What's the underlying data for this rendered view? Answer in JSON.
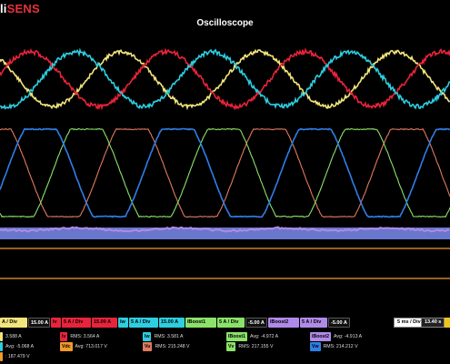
{
  "app": {
    "logo_a": "li",
    "logo_b": "SENS",
    "title": "Oscilloscope"
  },
  "colors": {
    "bg": "#000000",
    "red": "#e8243a",
    "yellow": "#f2e57c",
    "cyan": "#2ecde0",
    "blue": "#2f7fe6",
    "salmon": "#e07a60",
    "green": "#8be26a",
    "violet": "#b08ae8",
    "band": "#7a8cf0",
    "orange": "#f29a2c"
  },
  "legend": [
    {
      "text": "A / Div",
      "kind": "lbl",
      "color": "#f2e57c"
    },
    {
      "text": "15.00 A",
      "kind": "val"
    },
    {
      "text": "Iv",
      "kind": "lbl",
      "color": "#e8243a"
    },
    {
      "text": "5 A / Div",
      "kind": "lbl",
      "color": "#e8243a"
    },
    {
      "text": "15.00 A",
      "kind": "lbl",
      "color": "#e8243a"
    },
    {
      "text": "Iw",
      "kind": "lbl",
      "color": "#2ecde0"
    },
    {
      "text": "5 A / Div",
      "kind": "lbl",
      "color": "#2ecde0"
    },
    {
      "text": "15.00 A",
      "kind": "lbl",
      "color": "#2ecde0"
    },
    {
      "text": "IBoost1",
      "kind": "lbl",
      "color": "#8be26a"
    },
    {
      "text": "5 A / Div",
      "kind": "lbl",
      "color": "#8be26a"
    },
    {
      "text": "-5.00 A",
      "kind": "val"
    },
    {
      "text": "IBoost2",
      "kind": "lbl",
      "color": "#b08ae8"
    },
    {
      "text": "5 A / Div",
      "kind": "lbl",
      "color": "#b08ae8"
    },
    {
      "text": "-5.00 A",
      "kind": "val"
    }
  ],
  "timebase": {
    "div": "5 ms / Div",
    "pos": "13.40 s"
  },
  "measurements": [
    {
      "tag": "",
      "tagcolor": "#f2e57c",
      "text": "3.588 A",
      "row": 0
    },
    {
      "tag": "Iv",
      "tagcolor": "#e8243a",
      "text": "RMS: 3.564 A",
      "row": 0
    },
    {
      "tag": "Iw",
      "tagcolor": "#2ecde0",
      "text": "RMS: 3.581 A",
      "row": 0
    },
    {
      "tag": "IBoost1",
      "tagcolor": "#8be26a",
      "text": "Avg: -4.972 A",
      "row": 0
    },
    {
      "tag": "IBoost2",
      "tagcolor": "#b08ae8",
      "text": "Avg: -4.913 A",
      "row": 0
    },
    {
      "tag": "",
      "tagcolor": "#2ecde0",
      "text": "Avg: -5.068 A",
      "row": 1
    },
    {
      "tag": "Vdc",
      "tagcolor": "#f29a2c",
      "text": "Avg: 713.017 V",
      "row": 1
    },
    {
      "tag": "Vu",
      "tagcolor": "#e07a60",
      "text": "RMS: 215.248 V",
      "row": 1
    },
    {
      "tag": "Vv",
      "tagcolor": "#8be26a",
      "text": "RMS: 217.155 V",
      "row": 1
    },
    {
      "tag": "Vw",
      "tagcolor": "#2f7fe6",
      "text": "RMS: 214.212 V",
      "row": 1
    },
    {
      "tag": "",
      "tagcolor": "#f29a2c",
      "text": ": 187.479 V",
      "row": 2
    }
  ]
}
